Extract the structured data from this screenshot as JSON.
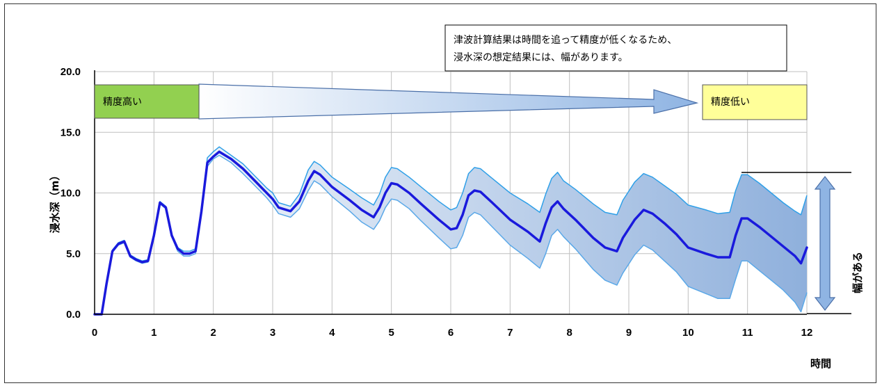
{
  "chart_data": {
    "type": "line",
    "xlabel": "時間",
    "ylabel": "浸水深（m）",
    "xlim": [
      0,
      12
    ],
    "ylim": [
      0,
      20
    ],
    "x_ticks": [
      "0",
      "1",
      "2",
      "3",
      "4",
      "5",
      "6",
      "7",
      "8",
      "9",
      "10",
      "11",
      "12"
    ],
    "y_ticks": [
      "0.0",
      "5.0",
      "10.0",
      "15.0",
      "20.0"
    ],
    "grid": true,
    "series": [
      {
        "role": "central",
        "color": "#1a1adc",
        "points": [
          [
            0,
            0
          ],
          [
            0.12,
            0
          ],
          [
            0.2,
            2.5
          ],
          [
            0.3,
            5.2
          ],
          [
            0.4,
            5.8
          ],
          [
            0.5,
            6.0
          ],
          [
            0.6,
            4.8
          ],
          [
            0.7,
            4.5
          ],
          [
            0.8,
            4.3
          ],
          [
            0.9,
            4.4
          ],
          [
            1.0,
            6.5
          ],
          [
            1.1,
            9.2
          ],
          [
            1.2,
            8.8
          ],
          [
            1.3,
            6.5
          ],
          [
            1.4,
            5.4
          ],
          [
            1.5,
            5.0
          ],
          [
            1.6,
            5.0
          ],
          [
            1.7,
            5.2
          ],
          [
            1.8,
            8.5
          ],
          [
            1.9,
            12.5
          ],
          [
            2.0,
            13.0
          ],
          [
            2.1,
            13.4
          ],
          [
            2.3,
            12.8
          ],
          [
            2.5,
            12.0
          ],
          [
            2.7,
            11.0
          ],
          [
            2.9,
            10.0
          ],
          [
            3.0,
            9.5
          ],
          [
            3.1,
            8.8
          ],
          [
            3.3,
            8.5
          ],
          [
            3.45,
            9.3
          ],
          [
            3.6,
            11.0
          ],
          [
            3.7,
            11.8
          ],
          [
            3.8,
            11.5
          ],
          [
            4.0,
            10.5
          ],
          [
            4.3,
            9.4
          ],
          [
            4.5,
            8.6
          ],
          [
            4.7,
            8.0
          ],
          [
            4.8,
            8.8
          ],
          [
            4.9,
            10.0
          ],
          [
            5.0,
            10.8
          ],
          [
            5.1,
            10.7
          ],
          [
            5.3,
            10.0
          ],
          [
            5.5,
            9.1
          ],
          [
            5.8,
            7.8
          ],
          [
            6.0,
            7.0
          ],
          [
            6.1,
            7.1
          ],
          [
            6.2,
            8.2
          ],
          [
            6.3,
            9.8
          ],
          [
            6.4,
            10.2
          ],
          [
            6.5,
            10.1
          ],
          [
            6.7,
            9.2
          ],
          [
            7.0,
            7.8
          ],
          [
            7.3,
            6.8
          ],
          [
            7.5,
            6.0
          ],
          [
            7.6,
            7.5
          ],
          [
            7.7,
            8.8
          ],
          [
            7.8,
            9.3
          ],
          [
            7.9,
            8.7
          ],
          [
            8.1,
            7.8
          ],
          [
            8.4,
            6.3
          ],
          [
            8.6,
            5.5
          ],
          [
            8.8,
            5.2
          ],
          [
            8.9,
            6.3
          ],
          [
            9.1,
            7.8
          ],
          [
            9.25,
            8.6
          ],
          [
            9.4,
            8.3
          ],
          [
            9.6,
            7.5
          ],
          [
            9.8,
            6.6
          ],
          [
            10.0,
            5.5
          ],
          [
            10.3,
            5.0
          ],
          [
            10.5,
            4.7
          ],
          [
            10.7,
            4.7
          ],
          [
            10.8,
            6.5
          ],
          [
            10.9,
            7.9
          ],
          [
            11.0,
            7.9
          ],
          [
            11.2,
            7.2
          ],
          [
            11.4,
            6.4
          ],
          [
            11.6,
            5.6
          ],
          [
            11.8,
            4.8
          ],
          [
            11.9,
            4.2
          ],
          [
            12.0,
            5.5
          ]
        ]
      },
      {
        "role": "upper",
        "color": "#2fa0e8",
        "points": [
          [
            0,
            0
          ],
          [
            0.12,
            0
          ],
          [
            0.2,
            2.6
          ],
          [
            0.3,
            5.3
          ],
          [
            0.4,
            5.9
          ],
          [
            0.5,
            6.1
          ],
          [
            0.6,
            4.9
          ],
          [
            0.7,
            4.6
          ],
          [
            0.8,
            4.4
          ],
          [
            0.9,
            4.5
          ],
          [
            1.0,
            6.6
          ],
          [
            1.1,
            9.3
          ],
          [
            1.2,
            8.9
          ],
          [
            1.3,
            6.6
          ],
          [
            1.4,
            5.5
          ],
          [
            1.5,
            5.2
          ],
          [
            1.6,
            5.2
          ],
          [
            1.7,
            5.4
          ],
          [
            1.8,
            8.8
          ],
          [
            1.9,
            12.9
          ],
          [
            2.0,
            13.4
          ],
          [
            2.1,
            13.8
          ],
          [
            2.3,
            13.1
          ],
          [
            2.5,
            12.4
          ],
          [
            2.7,
            11.4
          ],
          [
            2.9,
            10.4
          ],
          [
            3.0,
            10.0
          ],
          [
            3.1,
            9.2
          ],
          [
            3.3,
            8.9
          ],
          [
            3.45,
            9.9
          ],
          [
            3.6,
            11.9
          ],
          [
            3.7,
            12.6
          ],
          [
            3.8,
            12.3
          ],
          [
            4.0,
            11.3
          ],
          [
            4.3,
            10.3
          ],
          [
            4.5,
            9.6
          ],
          [
            4.7,
            9.0
          ],
          [
            4.8,
            9.9
          ],
          [
            4.9,
            11.3
          ],
          [
            5.0,
            12.1
          ],
          [
            5.1,
            12.0
          ],
          [
            5.3,
            11.3
          ],
          [
            5.5,
            10.5
          ],
          [
            5.8,
            9.3
          ],
          [
            6.0,
            8.6
          ],
          [
            6.1,
            8.8
          ],
          [
            6.2,
            10.0
          ],
          [
            6.3,
            11.6
          ],
          [
            6.4,
            12.1
          ],
          [
            6.5,
            12.0
          ],
          [
            6.7,
            11.2
          ],
          [
            7.0,
            10.0
          ],
          [
            7.3,
            9.1
          ],
          [
            7.5,
            8.4
          ],
          [
            7.6,
            9.9
          ],
          [
            7.7,
            11.2
          ],
          [
            7.8,
            11.7
          ],
          [
            7.9,
            11.0
          ],
          [
            8.1,
            10.3
          ],
          [
            8.4,
            9.1
          ],
          [
            8.6,
            8.4
          ],
          [
            8.8,
            8.2
          ],
          [
            8.9,
            9.4
          ],
          [
            9.1,
            10.9
          ],
          [
            9.25,
            11.6
          ],
          [
            9.4,
            11.3
          ],
          [
            9.6,
            10.6
          ],
          [
            9.8,
            9.9
          ],
          [
            10.0,
            9.0
          ],
          [
            10.3,
            8.6
          ],
          [
            10.5,
            8.3
          ],
          [
            10.7,
            8.4
          ],
          [
            10.8,
            10.2
          ],
          [
            10.9,
            11.5
          ],
          [
            11.0,
            11.5
          ],
          [
            11.2,
            10.8
          ],
          [
            11.4,
            10.0
          ],
          [
            11.6,
            9.2
          ],
          [
            11.8,
            8.5
          ],
          [
            11.9,
            8.2
          ],
          [
            12.0,
            9.8
          ]
        ]
      },
      {
        "role": "lower",
        "color": "#5aa8e8",
        "points": [
          [
            0,
            0
          ],
          [
            0.12,
            0
          ],
          [
            0.2,
            2.4
          ],
          [
            0.3,
            5.1
          ],
          [
            0.4,
            5.7
          ],
          [
            0.5,
            5.9
          ],
          [
            0.6,
            4.7
          ],
          [
            0.7,
            4.4
          ],
          [
            0.8,
            4.2
          ],
          [
            0.9,
            4.3
          ],
          [
            1.0,
            6.4
          ],
          [
            1.1,
            9.1
          ],
          [
            1.2,
            8.7
          ],
          [
            1.3,
            6.4
          ],
          [
            1.4,
            5.2
          ],
          [
            1.5,
            4.8
          ],
          [
            1.6,
            4.8
          ],
          [
            1.7,
            5.0
          ],
          [
            1.8,
            8.2
          ],
          [
            1.9,
            12.2
          ],
          [
            2.0,
            12.8
          ],
          [
            2.1,
            13.1
          ],
          [
            2.3,
            12.5
          ],
          [
            2.5,
            11.6
          ],
          [
            2.7,
            10.6
          ],
          [
            2.9,
            9.6
          ],
          [
            3.0,
            9.0
          ],
          [
            3.1,
            8.3
          ],
          [
            3.3,
            8.0
          ],
          [
            3.45,
            8.7
          ],
          [
            3.6,
            10.2
          ],
          [
            3.7,
            11.0
          ],
          [
            3.8,
            10.7
          ],
          [
            4.0,
            9.7
          ],
          [
            4.3,
            8.5
          ],
          [
            4.5,
            7.6
          ],
          [
            4.7,
            7.0
          ],
          [
            4.8,
            7.7
          ],
          [
            4.9,
            8.8
          ],
          [
            5.0,
            9.5
          ],
          [
            5.1,
            9.4
          ],
          [
            5.3,
            8.7
          ],
          [
            5.5,
            7.7
          ],
          [
            5.8,
            6.3
          ],
          [
            6.0,
            5.4
          ],
          [
            6.1,
            5.5
          ],
          [
            6.2,
            6.5
          ],
          [
            6.3,
            8.0
          ],
          [
            6.4,
            8.4
          ],
          [
            6.5,
            8.2
          ],
          [
            6.7,
            7.2
          ],
          [
            7.0,
            5.7
          ],
          [
            7.3,
            4.6
          ],
          [
            7.5,
            3.8
          ],
          [
            7.6,
            5.0
          ],
          [
            7.7,
            6.5
          ],
          [
            7.8,
            7.0
          ],
          [
            7.9,
            6.4
          ],
          [
            8.1,
            5.4
          ],
          [
            8.4,
            3.7
          ],
          [
            8.6,
            2.8
          ],
          [
            8.8,
            2.4
          ],
          [
            8.9,
            3.4
          ],
          [
            9.1,
            4.9
          ],
          [
            9.25,
            5.7
          ],
          [
            9.4,
            5.3
          ],
          [
            9.6,
            4.4
          ],
          [
            9.8,
            3.5
          ],
          [
            10.0,
            2.3
          ],
          [
            10.3,
            1.7
          ],
          [
            10.5,
            1.3
          ],
          [
            10.7,
            1.3
          ],
          [
            10.8,
            2.9
          ],
          [
            10.9,
            4.4
          ],
          [
            11.0,
            4.4
          ],
          [
            11.2,
            3.6
          ],
          [
            11.4,
            2.8
          ],
          [
            11.6,
            2.0
          ],
          [
            11.8,
            1.0
          ],
          [
            11.9,
            0.2
          ],
          [
            12.0,
            1.8
          ]
        ]
      }
    ],
    "band_fill": {
      "from": "#ffffff",
      "to": "#8fb0dc"
    }
  },
  "annotations": {
    "callout_text": [
      "津波計算結果は時間を追って精度が低くなるため、",
      "浸水深の想定結果には、幅があります。"
    ],
    "high_accuracy_label": "精度高い",
    "low_accuracy_label": "精度低い",
    "range_label": "幅がある",
    "high_box_color": "#92d050",
    "low_box_color": "#ffff99",
    "arrow_color": "#8fb4e3"
  }
}
